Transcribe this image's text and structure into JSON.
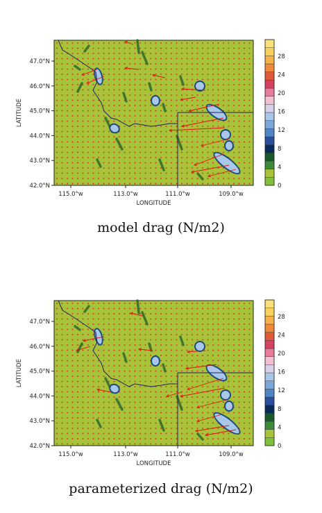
{
  "panels": [
    {
      "caption": "model drag (N/m2)",
      "xlabel": "LONGITUDE",
      "ylabel": "LATITUDE",
      "lat_ticks": [
        "42.0°N",
        "43.0°N",
        "44.0°N",
        "45.0°N",
        "46.0°N",
        "47.0°N"
      ],
      "lon_ticks": [
        "115.0°w",
        "113.0°w",
        "111.0°w",
        "109.0°w"
      ],
      "colorbar_ticks": [
        "0",
        "4",
        "8",
        "12",
        "16",
        "20",
        "24",
        "28"
      ]
    },
    {
      "caption": "parameterized drag (N/m2)",
      "xlabel": "LONGITUDE",
      "ylabel": "LATITUDE",
      "lat_ticks": [
        "42.0°N",
        "43.0°N",
        "44.0°N",
        "45.0°N",
        "46.0°N",
        "47.0°N"
      ],
      "lon_ticks": [
        "115.0°w",
        "113.0°w",
        "111.0°w",
        "109.0°w"
      ],
      "colorbar_ticks": [
        "0",
        "4",
        "8",
        "12",
        "16",
        "20",
        "24",
        "28"
      ]
    }
  ],
  "colors": {
    "background_field": "#a8c23a",
    "grid_dot": "#d02020",
    "arrow": "#e01010",
    "boundary": "#202060",
    "colorbar": [
      "#7fbf3a",
      "#a8c23a",
      "#3c8a3a",
      "#1a5a2a",
      "#0a2a5a",
      "#2a4fa0",
      "#4f86c6",
      "#7ca7d8",
      "#a9c7e8",
      "#d8d0e8",
      "#f0c0d0",
      "#e87a9a",
      "#d84060",
      "#e05a3a",
      "#f08a3a",
      "#f6b04a",
      "#f8d060",
      "#fae07a"
    ]
  }
}
